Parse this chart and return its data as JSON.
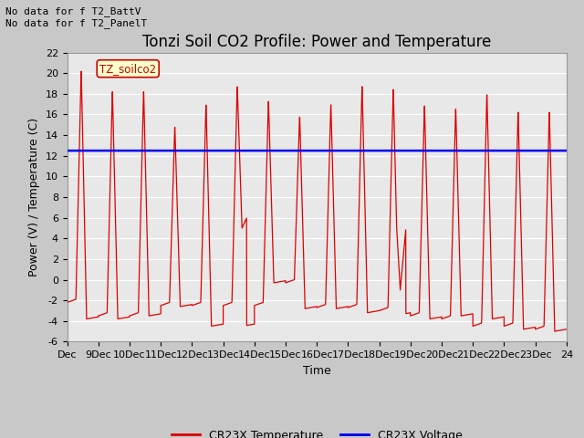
{
  "title": "Tonzi Soil CO2 Profile: Power and Temperature",
  "xlabel": "Time",
  "ylabel": "Power (V) / Temperature (C)",
  "ylim": [
    -6,
    22
  ],
  "yticks": [
    -6,
    -4,
    -2,
    0,
    2,
    4,
    6,
    8,
    10,
    12,
    14,
    16,
    18,
    20,
    22
  ],
  "xlim": [
    0,
    16
  ],
  "xtick_labels": [
    "Dec",
    "9Dec",
    "10Dec",
    "11Dec",
    "12Dec",
    "13Dec",
    "14Dec",
    "15Dec",
    "16Dec",
    "17Dec",
    "18Dec",
    "19Dec",
    "20Dec",
    "21Dec",
    "22Dec",
    "23Dec",
    "24"
  ],
  "voltage_value": 12.5,
  "voltage_color": "#0000ee",
  "temp_color": "#dd0000",
  "annotation_text": "No data for f T2_BattV\nNo data for f T2_PanelT",
  "legend_label_text": "TZ_soilco2",
  "legend_label_color": "#cc0000",
  "legend_label_bg": "#ffffcc",
  "legend_label_border": "#cc0000",
  "legend1": "CR23X Temperature",
  "legend2": "CR23X Voltage",
  "plot_bg_color": "#e8e8e8",
  "fig_bg_color": "#c8c8c8",
  "grid_color": "#ffffff",
  "title_fontsize": 12,
  "axis_fontsize": 9,
  "tick_fontsize": 8,
  "annotation_fontsize": 8
}
